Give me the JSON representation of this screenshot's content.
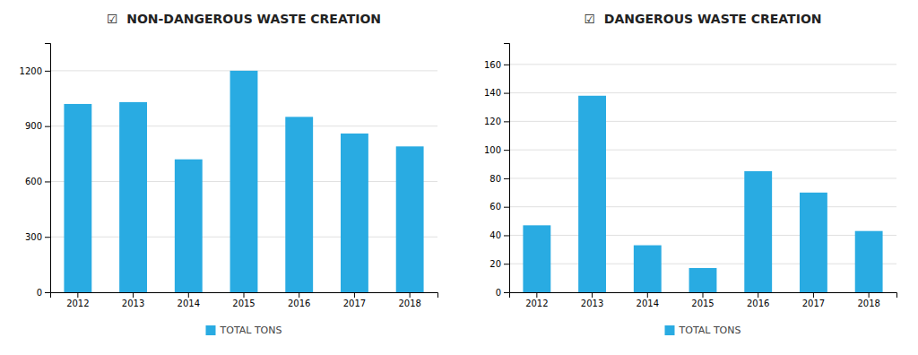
{
  "chart_data": [
    {
      "type": "bar",
      "title": "☑  NON-DANGEROUS WASTE CREATION",
      "categories": [
        "2012",
        "2013",
        "2014",
        "2015",
        "2016",
        "2017",
        "2018"
      ],
      "series": [
        {
          "name": "TOTAL TONS",
          "color": "#29ABE2",
          "values": [
            1020,
            1030,
            720,
            1200,
            950,
            860,
            790
          ]
        }
      ],
      "ylim": [
        0,
        1350
      ],
      "yticks": [
        0,
        300,
        600,
        900,
        1200
      ],
      "grid": true,
      "legend": "bottom"
    },
    {
      "type": "bar",
      "title": "☑  DANGEROUS WASTE CREATION",
      "categories": [
        "2012",
        "2013",
        "2014",
        "2015",
        "2016",
        "2017",
        "2018"
      ],
      "series": [
        {
          "name": "TOTAL TONS",
          "color": "#29ABE2",
          "values": [
            47,
            138,
            33,
            17,
            85,
            70,
            43
          ]
        }
      ],
      "ylim": [
        0,
        175
      ],
      "yticks": [
        0,
        20,
        40,
        60,
        80,
        100,
        120,
        140,
        160
      ],
      "grid": true,
      "legend": "bottom"
    }
  ]
}
